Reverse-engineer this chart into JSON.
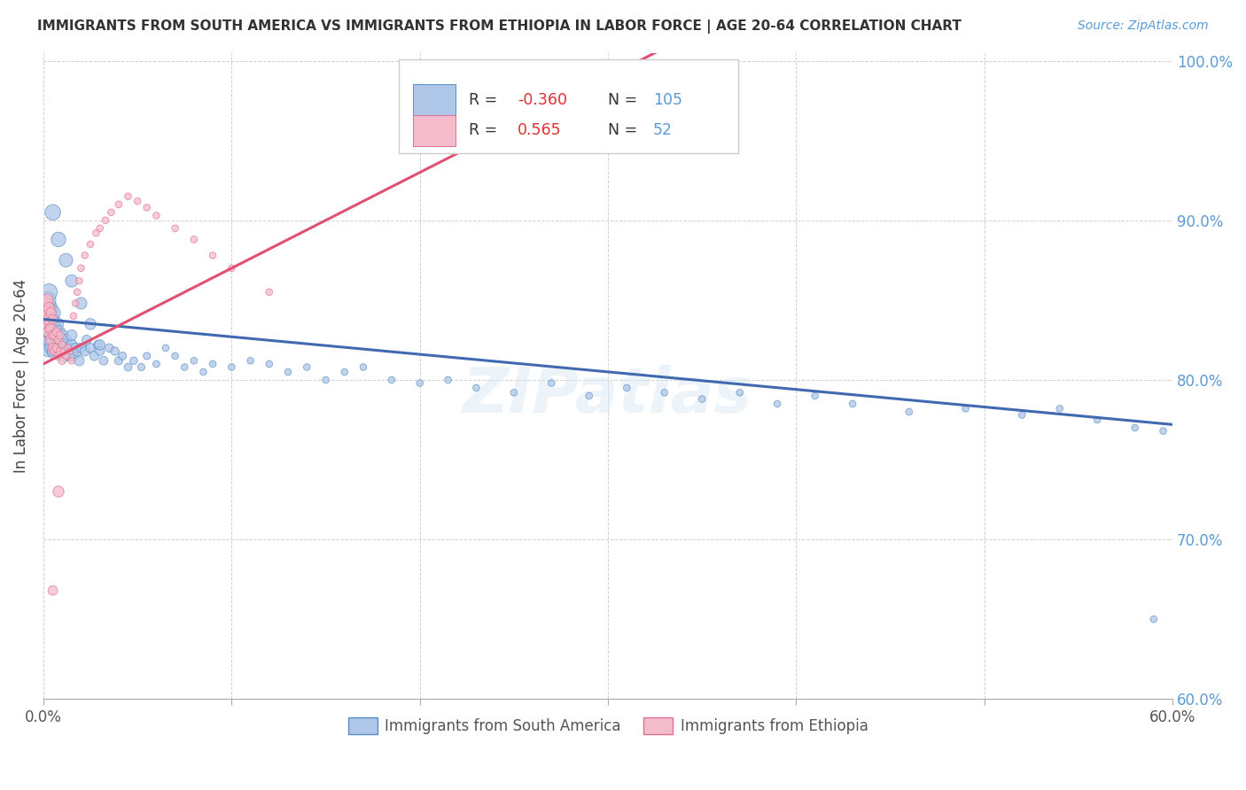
{
  "title": "IMMIGRANTS FROM SOUTH AMERICA VS IMMIGRANTS FROM ETHIOPIA IN LABOR FORCE | AGE 20-64 CORRELATION CHART",
  "source": "Source: ZipAtlas.com",
  "ylabel_left": "In Labor Force | Age 20-64",
  "legend_labels": [
    "Immigrants from South America",
    "Immigrants from Ethiopia"
  ],
  "r_blue": -0.36,
  "r_pink": 0.565,
  "n_blue": 105,
  "n_pink": 52,
  "blue_face": "#aec6e8",
  "blue_edge": "#5b8ec4",
  "pink_face": "#f5bccb",
  "pink_edge": "#e07090",
  "blue_line": "#4169b0",
  "pink_line": "#e05070",
  "right_axis_color": "#5b9bd5",
  "watermark": "ZIPatlas",
  "xmin": 0.0,
  "xmax": 0.6,
  "ymin": 0.6,
  "ymax": 1.005,
  "yticks": [
    0.6,
    0.7,
    0.8,
    0.9,
    1.0
  ],
  "blue_trend_x0": 0.0,
  "blue_trend_y0": 0.838,
  "blue_trend_x1": 0.6,
  "blue_trend_y1": 0.772,
  "pink_trend_x0": 0.0,
  "pink_trend_y0": 0.81,
  "pink_trend_x1": 0.2,
  "pink_trend_y1": 0.93,
  "blue_x": [
    0.001,
    0.001,
    0.001,
    0.002,
    0.002,
    0.002,
    0.002,
    0.003,
    0.003,
    0.003,
    0.003,
    0.003,
    0.004,
    0.004,
    0.004,
    0.005,
    0.005,
    0.005,
    0.005,
    0.006,
    0.006,
    0.006,
    0.007,
    0.007,
    0.007,
    0.008,
    0.008,
    0.009,
    0.009,
    0.01,
    0.01,
    0.011,
    0.011,
    0.012,
    0.012,
    0.013,
    0.014,
    0.015,
    0.015,
    0.016,
    0.017,
    0.018,
    0.019,
    0.02,
    0.022,
    0.023,
    0.025,
    0.027,
    0.029,
    0.03,
    0.032,
    0.035,
    0.038,
    0.04,
    0.042,
    0.045,
    0.048,
    0.052,
    0.055,
    0.06,
    0.065,
    0.07,
    0.075,
    0.08,
    0.085,
    0.09,
    0.1,
    0.11,
    0.12,
    0.13,
    0.14,
    0.15,
    0.16,
    0.17,
    0.185,
    0.2,
    0.215,
    0.23,
    0.25,
    0.27,
    0.29,
    0.31,
    0.33,
    0.35,
    0.37,
    0.39,
    0.41,
    0.43,
    0.46,
    0.49,
    0.52,
    0.54,
    0.56,
    0.58,
    0.595,
    0.002,
    0.003,
    0.005,
    0.008,
    0.012,
    0.015,
    0.02,
    0.025,
    0.03,
    0.59
  ],
  "blue_y": [
    0.84,
    0.835,
    0.845,
    0.825,
    0.83,
    0.838,
    0.842,
    0.82,
    0.828,
    0.832,
    0.84,
    0.845,
    0.825,
    0.83,
    0.838,
    0.82,
    0.828,
    0.835,
    0.842,
    0.818,
    0.825,
    0.832,
    0.82,
    0.828,
    0.835,
    0.822,
    0.83,
    0.818,
    0.825,
    0.82,
    0.828,
    0.815,
    0.822,
    0.818,
    0.825,
    0.82,
    0.815,
    0.822,
    0.828,
    0.815,
    0.82,
    0.818,
    0.812,
    0.82,
    0.818,
    0.825,
    0.82,
    0.815,
    0.822,
    0.818,
    0.812,
    0.82,
    0.818,
    0.812,
    0.815,
    0.808,
    0.812,
    0.808,
    0.815,
    0.81,
    0.82,
    0.815,
    0.808,
    0.812,
    0.805,
    0.81,
    0.808,
    0.812,
    0.81,
    0.805,
    0.808,
    0.8,
    0.805,
    0.808,
    0.8,
    0.798,
    0.8,
    0.795,
    0.792,
    0.798,
    0.79,
    0.795,
    0.792,
    0.788,
    0.792,
    0.785,
    0.79,
    0.785,
    0.78,
    0.782,
    0.778,
    0.782,
    0.775,
    0.77,
    0.768,
    0.85,
    0.855,
    0.905,
    0.888,
    0.875,
    0.862,
    0.848,
    0.835,
    0.822,
    0.65
  ],
  "blue_size": [
    300,
    280,
    260,
    250,
    240,
    230,
    220,
    210,
    200,
    195,
    190,
    185,
    180,
    175,
    170,
    165,
    160,
    155,
    150,
    145,
    140,
    135,
    130,
    125,
    120,
    115,
    110,
    105,
    100,
    95,
    90,
    88,
    86,
    84,
    82,
    80,
    78,
    76,
    74,
    72,
    70,
    68,
    66,
    64,
    62,
    60,
    58,
    56,
    54,
    52,
    50,
    48,
    46,
    44,
    42,
    40,
    38,
    36,
    34,
    32,
    30,
    30,
    30,
    30,
    30,
    30,
    30,
    30,
    30,
    30,
    30,
    30,
    30,
    30,
    30,
    30,
    30,
    30,
    30,
    30,
    30,
    30,
    30,
    30,
    30,
    30,
    30,
    30,
    30,
    30,
    30,
    30,
    30,
    30,
    30,
    200,
    180,
    160,
    140,
    120,
    100,
    90,
    80,
    70,
    30
  ],
  "pink_x": [
    0.001,
    0.001,
    0.002,
    0.002,
    0.002,
    0.003,
    0.003,
    0.003,
    0.004,
    0.004,
    0.004,
    0.005,
    0.005,
    0.005,
    0.006,
    0.006,
    0.007,
    0.007,
    0.008,
    0.008,
    0.009,
    0.009,
    0.01,
    0.01,
    0.011,
    0.012,
    0.013,
    0.014,
    0.015,
    0.016,
    0.017,
    0.018,
    0.019,
    0.02,
    0.022,
    0.025,
    0.028,
    0.03,
    0.033,
    0.036,
    0.04,
    0.045,
    0.05,
    0.055,
    0.06,
    0.07,
    0.08,
    0.09,
    0.1,
    0.12,
    0.008,
    0.005
  ],
  "pink_y": [
    0.84,
    0.848,
    0.835,
    0.842,
    0.85,
    0.83,
    0.838,
    0.845,
    0.825,
    0.832,
    0.842,
    0.82,
    0.828,
    0.838,
    0.818,
    0.828,
    0.82,
    0.83,
    0.815,
    0.825,
    0.818,
    0.828,
    0.812,
    0.822,
    0.818,
    0.815,
    0.82,
    0.818,
    0.812,
    0.84,
    0.848,
    0.855,
    0.862,
    0.87,
    0.878,
    0.885,
    0.892,
    0.895,
    0.9,
    0.905,
    0.91,
    0.915,
    0.912,
    0.908,
    0.903,
    0.895,
    0.888,
    0.878,
    0.87,
    0.855,
    0.73,
    0.668
  ],
  "pink_size": [
    120,
    100,
    110,
    105,
    100,
    95,
    90,
    85,
    80,
    75,
    70,
    65,
    62,
    60,
    58,
    55,
    52,
    50,
    48,
    45,
    42,
    40,
    38,
    36,
    34,
    32,
    30,
    30,
    30,
    30,
    30,
    30,
    30,
    30,
    30,
    30,
    30,
    30,
    30,
    30,
    30,
    30,
    30,
    30,
    30,
    30,
    30,
    30,
    30,
    30,
    80,
    60
  ]
}
